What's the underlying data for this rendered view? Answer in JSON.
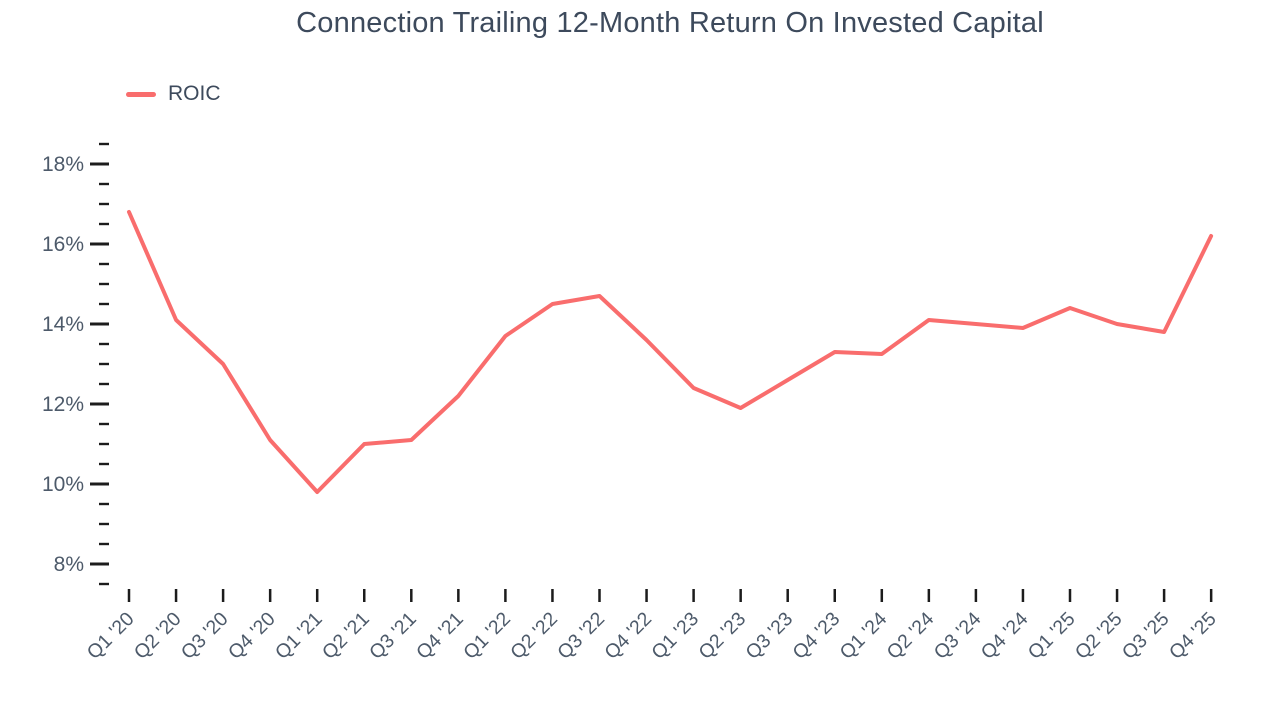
{
  "title": "Connection Trailing 12-Month Return On Invested Capital",
  "legend": {
    "label": "ROIC"
  },
  "colors": {
    "line": "#f96d6d",
    "title_text": "#3d4a5c",
    "axis_label": "#4d5a6a",
    "tick_mark": "#1c1c1c",
    "background": "#ffffff"
  },
  "chart_data": {
    "type": "line",
    "title": "Connection Trailing 12-Month Return On Invested Capital",
    "xlabel": "",
    "ylabel": "",
    "grid": false,
    "legend_position": "top-left",
    "ylim": [
      7.5,
      18.5
    ],
    "y_major_ticks": [
      8,
      10,
      12,
      14,
      16,
      18
    ],
    "y_major_tick_labels": [
      "8%",
      "10%",
      "12%",
      "14%",
      "16%",
      "18%"
    ],
    "y_minor_step": 0.5,
    "y_tick_suffix": "%",
    "categories": [
      "Q1 '20",
      "Q2 '20",
      "Q3 '20",
      "Q4 '20",
      "Q1 '21",
      "Q2 '21",
      "Q3 '21",
      "Q4 '21",
      "Q1 '22",
      "Q2 '22",
      "Q3 '22",
      "Q4 '22",
      "Q1 '23",
      "Q2 '23",
      "Q3 '23",
      "Q4 '23",
      "Q1 '24",
      "Q2 '24",
      "Q3 '24",
      "Q4 '24",
      "Q1 '25",
      "Q2 '25",
      "Q3 '25",
      "Q4 '25"
    ],
    "series": [
      {
        "name": "ROIC",
        "color": "#f96d6d",
        "values": [
          16.8,
          14.1,
          13.0,
          11.1,
          9.8,
          11.0,
          11.1,
          12.2,
          13.7,
          14.5,
          14.7,
          13.6,
          12.4,
          11.9,
          12.6,
          13.3,
          13.25,
          14.1,
          14.0,
          13.9,
          14.4,
          14.0,
          13.8,
          16.2
        ]
      }
    ]
  }
}
